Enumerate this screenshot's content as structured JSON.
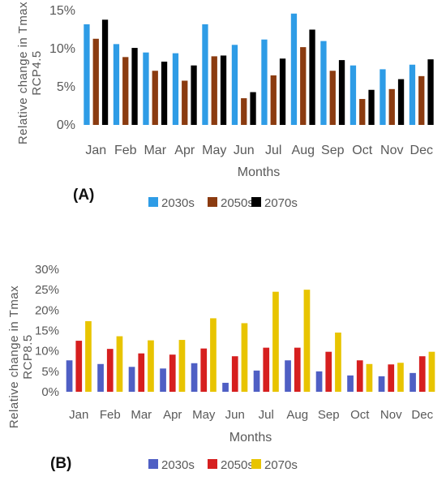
{
  "chart_data": [
    {
      "type": "bar",
      "panel": "(A)",
      "xlabel": "Months",
      "ylabel": "Relative change in Tmax RCP4.5",
      "categories": [
        "Jan",
        "Feb",
        "Mar",
        "Apr",
        "May",
        "Jun",
        "Jul",
        "Aug",
        "Sep",
        "Oct",
        "Nov",
        "Dec"
      ],
      "ylim": [
        0,
        15
      ],
      "yticks": [
        "0%",
        "5%",
        "10%",
        "15%"
      ],
      "grid": false,
      "legend_position": "bottom",
      "series": [
        {
          "name": "2030s",
          "color": "#2e9ce6",
          "values": [
            13.2,
            10.6,
            9.5,
            9.4,
            13.2,
            10.5,
            11.2,
            14.6,
            11.0,
            7.8,
            7.3,
            7.9
          ]
        },
        {
          "name": "2050s",
          "color": "#8b3b10",
          "values": [
            11.3,
            8.9,
            7.1,
            5.8,
            9.0,
            3.5,
            6.5,
            10.2,
            7.1,
            3.4,
            4.7,
            6.4
          ]
        },
        {
          "name": "2070s",
          "color": "#000000",
          "values": [
            13.8,
            10.1,
            8.3,
            7.8,
            9.1,
            4.3,
            8.7,
            12.5,
            8.5,
            4.6,
            6.0,
            8.6
          ]
        }
      ]
    },
    {
      "type": "bar",
      "panel": "(B)",
      "xlabel": "Months",
      "ylabel": "Relative change in Tmax RCP8.5",
      "categories": [
        "Jan",
        "Feb",
        "Mar",
        "Apr",
        "May",
        "Jun",
        "Jul",
        "Aug",
        "Sep",
        "Oct",
        "Nov",
        "Dec"
      ],
      "ylim": [
        0,
        30
      ],
      "yticks": [
        "0%",
        "5%",
        "10%",
        "15%",
        "20%",
        "25%",
        "30%"
      ],
      "grid": false,
      "legend_position": "bottom",
      "series": [
        {
          "name": "2030s",
          "color": "#4f5fc4",
          "values": [
            7.7,
            6.8,
            6.1,
            5.7,
            7.0,
            2.2,
            5.2,
            7.7,
            5.0,
            4.0,
            3.8,
            4.6
          ]
        },
        {
          "name": "2050s",
          "color": "#d61f1f",
          "values": [
            12.5,
            10.5,
            9.4,
            9.1,
            10.6,
            8.7,
            10.8,
            10.8,
            9.8,
            7.7,
            6.7,
            8.7
          ]
        },
        {
          "name": "2070s",
          "color": "#e8c400",
          "values": [
            17.3,
            13.6,
            12.6,
            12.7,
            18.0,
            16.8,
            24.5,
            25.0,
            14.5,
            6.8,
            7.1,
            9.8
          ]
        }
      ]
    }
  ]
}
